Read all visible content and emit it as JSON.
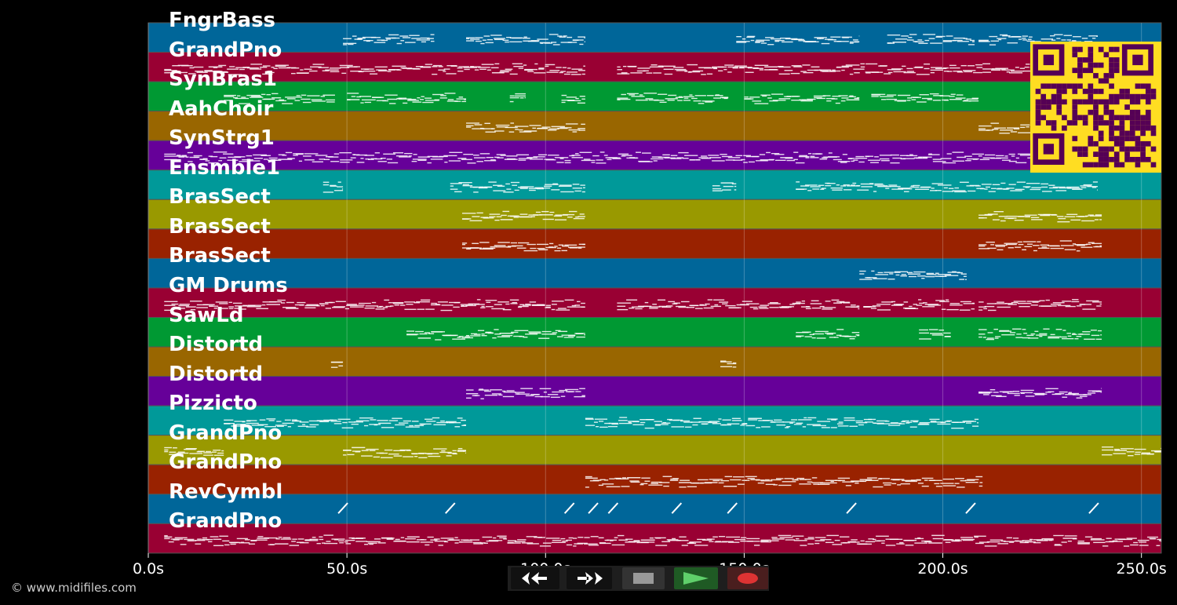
{
  "tracks": [
    {
      "name": "FngrBass",
      "color": "#006699",
      "segments": [
        [
          49,
          72
        ],
        [
          80,
          110
        ],
        [
          148,
          179
        ],
        [
          186,
          208
        ],
        [
          209,
          239
        ]
      ]
    },
    {
      "name": "GrandPno",
      "color": "#990033",
      "segments": [
        [
          4,
          110
        ],
        [
          118,
          210
        ],
        [
          210,
          240
        ]
      ]
    },
    {
      "name": "SynBras1",
      "color": "#009933",
      "segments": [
        [
          19,
          47
        ],
        [
          50,
          80
        ],
        [
          91,
          95
        ],
        [
          104,
          110
        ],
        [
          118,
          146
        ],
        [
          150,
          179
        ],
        [
          182,
          209
        ]
      ]
    },
    {
      "name": "AahChoir",
      "color": "#996600",
      "segments": [
        [
          80,
          110
        ],
        [
          209,
          240
        ]
      ]
    },
    {
      "name": "SynStrg1",
      "color": "#660099",
      "segments": [
        [
          4,
          240
        ]
      ]
    },
    {
      "name": "Ensmble1",
      "color": "#009999",
      "segments": [
        [
          44,
          49
        ],
        [
          76,
          110
        ],
        [
          142,
          148
        ],
        [
          163,
          239
        ]
      ]
    },
    {
      "name": "BrasSect",
      "color": "#999900",
      "segments": [
        [
          79,
          110
        ],
        [
          209,
          240
        ]
      ]
    },
    {
      "name": "BrasSect",
      "color": "#992200",
      "segments": [
        [
          79,
          110
        ],
        [
          209,
          240
        ]
      ]
    },
    {
      "name": "BrasSect",
      "color": "#006699",
      "segments": [
        [
          179,
          206
        ]
      ]
    },
    {
      "name": "GM Drums",
      "color": "#990033",
      "segments": [
        [
          4,
          110
        ],
        [
          118,
          179
        ],
        [
          180,
          208
        ],
        [
          209,
          240
        ]
      ]
    },
    {
      "name": "SawLd",
      "color": "#009933",
      "segments": [
        [
          65,
          110
        ],
        [
          163,
          179
        ],
        [
          194,
          202
        ],
        [
          209,
          240
        ]
      ]
    },
    {
      "name": "Distortd",
      "color": "#996600",
      "segments": [
        [
          46,
          49
        ],
        [
          144,
          148
        ]
      ]
    },
    {
      "name": "Distortd",
      "color": "#660099",
      "segments": [
        [
          80,
          110
        ],
        [
          209,
          240
        ]
      ]
    },
    {
      "name": "Pizzicto",
      "color": "#009999",
      "segments": [
        [
          19,
          80
        ],
        [
          110,
          209
        ]
      ]
    },
    {
      "name": "GrandPno",
      "color": "#999900",
      "segments": [
        [
          4,
          19
        ],
        [
          49,
          80
        ],
        [
          240,
          255
        ]
      ]
    },
    {
      "name": "GrandPno",
      "color": "#992200",
      "segments": [
        [
          110,
          210
        ]
      ]
    },
    {
      "name": "RevCymbl",
      "color": "#006699",
      "sweeps": [
        49,
        76,
        106,
        112,
        117,
        133,
        147,
        177,
        207,
        238
      ]
    },
    {
      "name": "GrandPno",
      "color": "#990033",
      "segments": [
        [
          4,
          255
        ]
      ]
    }
  ],
  "axis": {
    "ticks": [
      0,
      50,
      100,
      150,
      200,
      250
    ],
    "tick_labels": [
      "0.0s",
      "50.0s",
      "100.0s",
      "150.0s",
      "200.0s",
      "250.0s"
    ],
    "max_seconds": 255
  },
  "controls": {
    "rewind": "rewind-icon",
    "fast_forward": "fast-forward-icon",
    "stop": "stop-icon",
    "play": "play-icon",
    "record": "record-icon"
  },
  "footer": "© www.midifiles.com"
}
